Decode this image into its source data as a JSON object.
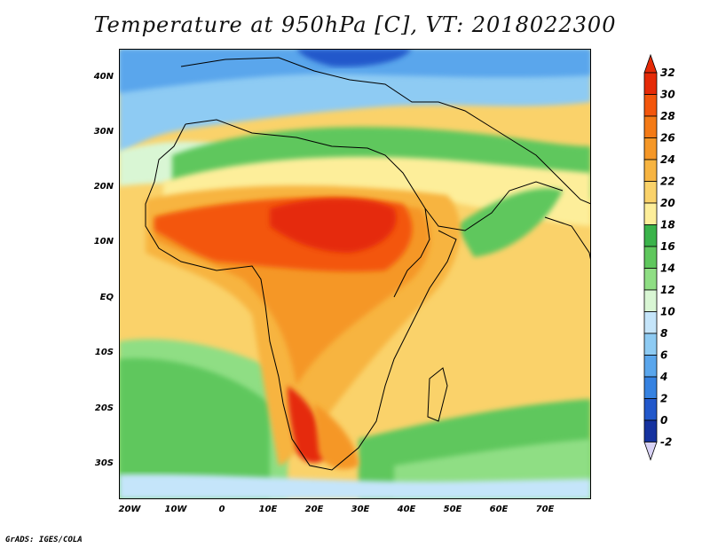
{
  "title": "Temperature at 950hPa [C], VT: 2018022300",
  "credit": "GrADS: IGES/COLA",
  "map": {
    "lon_ticks": [
      "20W",
      "10W",
      "0",
      "10E",
      "20E",
      "30E",
      "40E",
      "50E",
      "60E",
      "70E"
    ],
    "lat_ticks": [
      "40N",
      "30N",
      "20N",
      "10N",
      "EQ",
      "10S",
      "20S",
      "30S"
    ]
  },
  "colorbar": {
    "labels": [
      "32",
      "30",
      "28",
      "26",
      "24",
      "22",
      "20",
      "18",
      "16",
      "14",
      "12",
      "10",
      "8",
      "6",
      "4",
      "2",
      "0",
      "-2"
    ],
    "colors": [
      "#e52a07",
      "#f3560c",
      "#f47a16",
      "#f59727",
      "#f7b441",
      "#fad26a",
      "#fdee9a",
      "#3ab34a",
      "#5fc75d",
      "#8fde84",
      "#d9f6d4",
      "#c5e5fa",
      "#8ecbf3",
      "#5aa6ec",
      "#3682e1",
      "#2258cb",
      "#15329f",
      "#0d1a6b"
    ]
  },
  "chart_data": {
    "type": "heatmap",
    "title": "Temperature at 950hPa [C], VT: 2018022300",
    "units": "C",
    "valid_time": "2018022300",
    "x_ticks": [
      "20W",
      "10W",
      "0",
      "10E",
      "20E",
      "30E",
      "40E",
      "50E",
      "60E",
      "70E"
    ],
    "y_ticks": [
      "40N",
      "30N",
      "20N",
      "10N",
      "EQ",
      "10S",
      "20S",
      "30S"
    ],
    "lon_range": [
      -22,
      80
    ],
    "lat_range": [
      -36,
      45
    ],
    "color_levels": [
      -2,
      0,
      2,
      4,
      6,
      8,
      10,
      12,
      14,
      16,
      18,
      20,
      22,
      24,
      26,
      28,
      30,
      32
    ],
    "colorbar_position": "right"
  }
}
